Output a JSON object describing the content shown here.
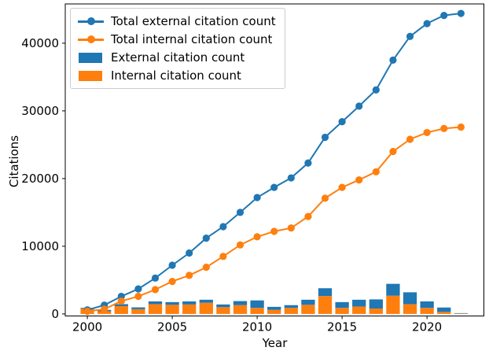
{
  "figure": {
    "xlabel": "Year",
    "ylabel": "Citations",
    "background": "#ffffff",
    "spine_color": "#000000"
  },
  "colors": {
    "external_blue": "#1f77b4",
    "internal_orange": "#ff7f0e"
  },
  "legend": {
    "position": "upper left",
    "items": [
      {
        "type": "line",
        "color": "#1f77b4",
        "label": "Total external citation count"
      },
      {
        "type": "line",
        "color": "#ff7f0e",
        "label": "Total internal citation count"
      },
      {
        "type": "bar",
        "color": "#1f77b4",
        "label": "External citation count"
      },
      {
        "type": "bar",
        "color": "#ff7f0e",
        "label": "Internal citation count"
      }
    ]
  },
  "chart_data": {
    "type": "line+stacked-bar",
    "title": "",
    "xlabel": "Year",
    "ylabel": "Citations",
    "x": [
      2000,
      2001,
      2002,
      2003,
      2004,
      2005,
      2006,
      2007,
      2008,
      2009,
      2010,
      2011,
      2012,
      2013,
      2014,
      2015,
      2016,
      2017,
      2018,
      2019,
      2020,
      2021,
      2022
    ],
    "series": [
      {
        "name": "Total external citation count",
        "kind": "line",
        "color": "#1f77b4",
        "values": [
          600,
          1300,
          2600,
          3700,
          5300,
          7200,
          9000,
          11200,
          12900,
          15000,
          17200,
          18700,
          20100,
          22300,
          26100,
          28400,
          30700,
          33100,
          37500,
          41000,
          42900,
          44100,
          44400
        ]
      },
      {
        "name": "Total internal citation count",
        "kind": "line",
        "color": "#ff7f0e",
        "values": [
          400,
          700,
          1900,
          2600,
          3600,
          4800,
          5700,
          6900,
          8500,
          10200,
          11400,
          12200,
          12700,
          14400,
          17100,
          18700,
          19800,
          21000,
          24000,
          25800,
          26800,
          27400,
          27600
        ]
      },
      {
        "name": "Internal citation count",
        "kind": "bar-bottom",
        "color": "#ff7f0e",
        "values": [
          800,
          400,
          1150,
          700,
          1450,
          1350,
          1400,
          1650,
          1000,
          1300,
          900,
          600,
          900,
          1350,
          2650,
          900,
          1100,
          800,
          2700,
          1450,
          900,
          300,
          60
        ]
      },
      {
        "name": "External citation count",
        "kind": "bar-top",
        "color": "#1f77b4",
        "values": [
          100,
          200,
          300,
          270,
          400,
          400,
          450,
          450,
          400,
          600,
          1100,
          450,
          400,
          750,
          1150,
          850,
          1000,
          1350,
          1750,
          1750,
          950,
          650,
          60
        ]
      }
    ],
    "xlim": [
      1998.7,
      2023.35
    ],
    "ylim": [
      -300,
      45800
    ],
    "xticks": [
      2000,
      2005,
      2010,
      2015,
      2020
    ],
    "yticks": [
      0,
      10000,
      20000,
      30000,
      40000
    ],
    "bar_width_years": 0.8,
    "grid": false,
    "legend_position": "upper left"
  }
}
